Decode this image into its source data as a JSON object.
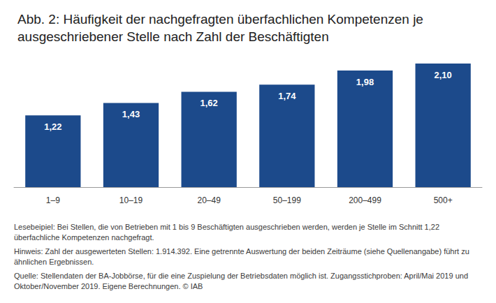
{
  "chart_data": {
    "type": "bar",
    "title": "Abb. 2: Häufigkeit der nachgefragten überfachlichen Kompetenzen je ausgeschriebener Stelle nach Zahl der Beschäftigten",
    "categories": [
      "1–9",
      "10–19",
      "20–49",
      "50–199",
      "200–499",
      "500+"
    ],
    "values": [
      1.22,
      1.43,
      1.62,
      1.74,
      1.98,
      2.1
    ],
    "value_labels": [
      "1,22",
      "1,43",
      "1,62",
      "1,74",
      "1,98",
      "2,10"
    ],
    "color": "#1c4a8b",
    "ylim": [
      0,
      2.1
    ],
    "grid": false,
    "data_labels": true,
    "tick_labels": "x",
    "annotations": [
      "Lesebeipiel: Bei Stellen, die von Betrieben mit 1 bis 9 Beschäftigten ausgeschrieben werden, werden je Stelle im Schnitt 1,22 überfachliche Kompetenzen nachgefragt.",
      "Hinweis: Zahl der ausgewerteten Stellen: 1.914.392. Eine getrennte Auswertung der beiden Zeiträume (siehe Quellenangabe) führt zu ähnlichen Ergebnissen.",
      "Quelle: Stellendaten der BA-Jobbörse, für die eine Zuspielung der Betriebsdaten möglich ist. Zugangsstichproben: April/Mai 2019 und Oktober/November 2019. Eigene Berechnungen. © IAB"
    ]
  }
}
